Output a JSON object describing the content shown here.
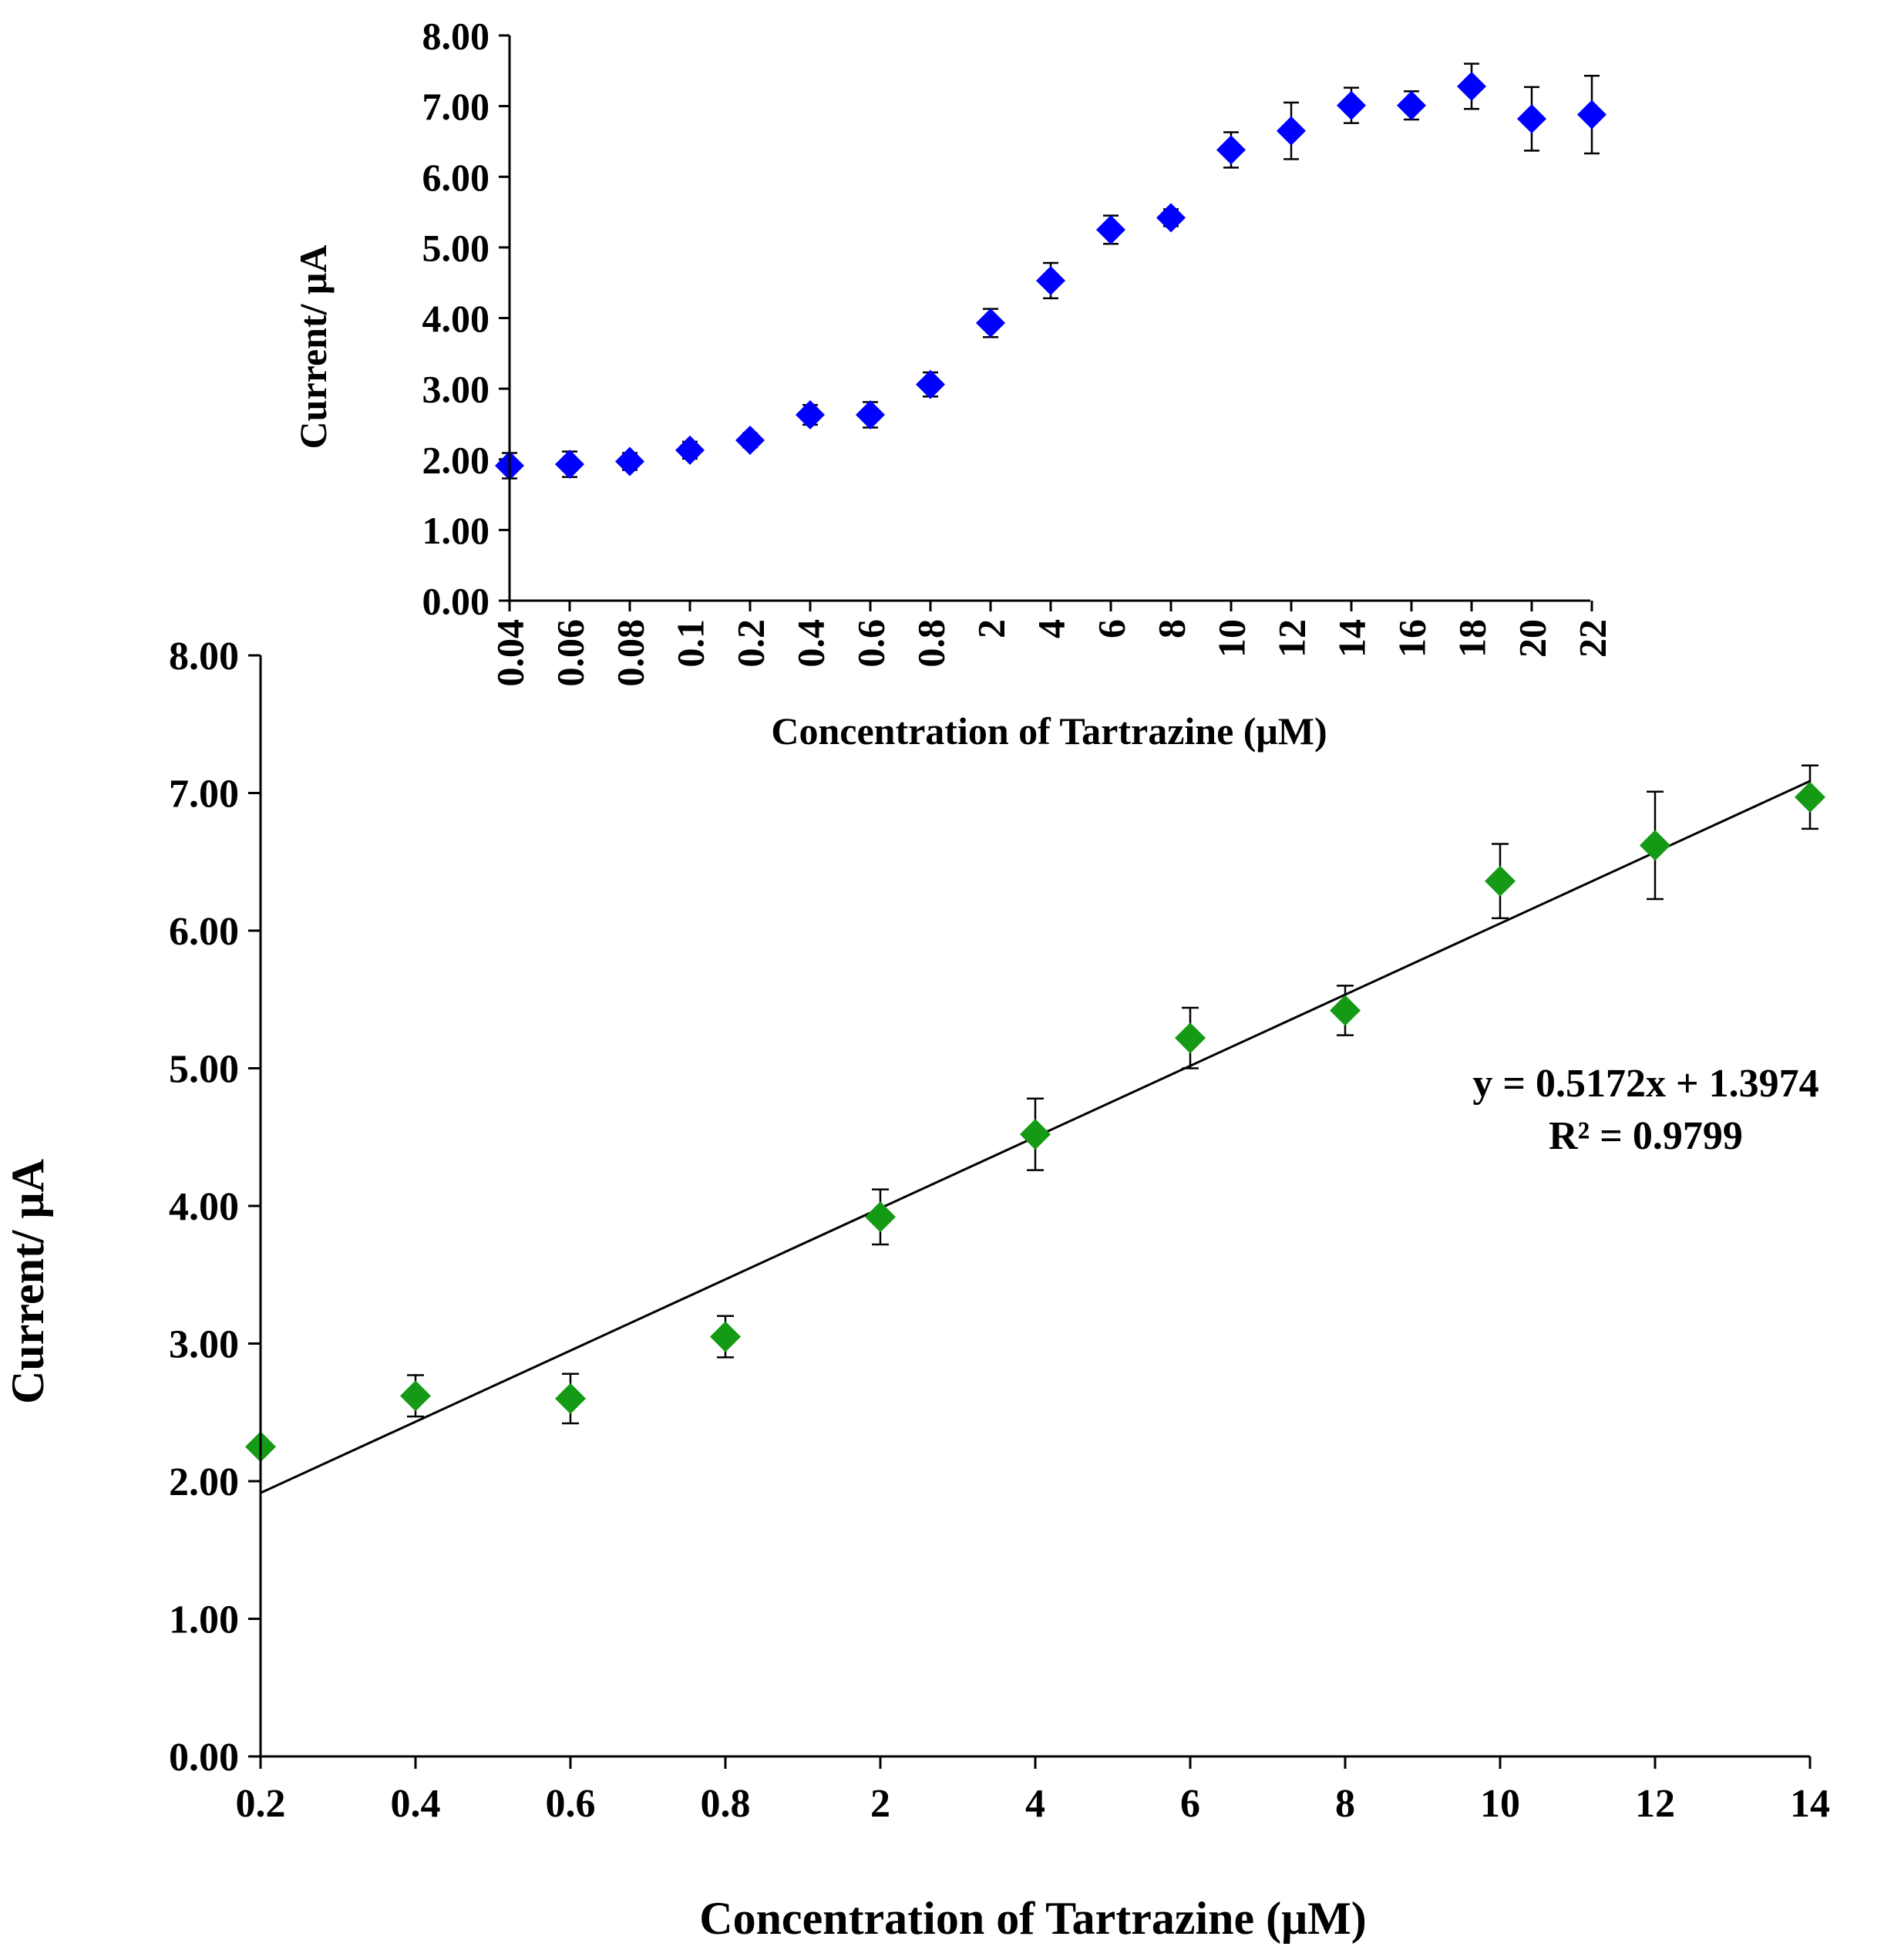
{
  "chart_data": [
    {
      "type": "scatter",
      "name": "inset",
      "categories": [
        "0.04",
        "0.06",
        "0.08",
        "0.1",
        "0.2",
        "0.4",
        "0.6",
        "0.8",
        "2",
        "4",
        "6",
        "8",
        "10",
        "12",
        "14",
        "16",
        "18",
        "20",
        "22"
      ],
      "values": [
        1.91,
        1.93,
        1.97,
        2.13,
        2.27,
        2.63,
        2.63,
        3.06,
        3.93,
        4.53,
        5.25,
        5.42,
        6.38,
        6.65,
        7.01,
        7.01,
        7.28,
        6.82,
        6.88
      ],
      "errors": [
        0.18,
        0.18,
        0.12,
        0.12,
        0.1,
        0.14,
        0.18,
        0.17,
        0.2,
        0.25,
        0.2,
        0.12,
        0.25,
        0.4,
        0.25,
        0.2,
        0.32,
        0.45,
        0.55
      ],
      "xlabel": "Concentration  of Tartrazine  (μM)",
      "ylabel": "Current/  μA",
      "ylim": [
        0,
        8
      ],
      "yticks": [
        "0.00",
        "1.00",
        "2.00",
        "3.00",
        "4.00",
        "5.00",
        "6.00",
        "7.00",
        "8.00"
      ],
      "marker_color": "#0000ff",
      "marker": "diamond"
    },
    {
      "type": "scatter",
      "name": "main",
      "categories": [
        "0.2",
        "0.4",
        "0.6",
        "0.8",
        "2",
        "4",
        "6",
        "8",
        "10",
        "12",
        "14"
      ],
      "values": [
        2.25,
        2.62,
        2.6,
        3.05,
        3.92,
        4.52,
        5.22,
        5.42,
        6.36,
        6.62,
        6.97
      ],
      "errors": [
        0.0,
        0.15,
        0.18,
        0.15,
        0.2,
        0.26,
        0.22,
        0.18,
        0.27,
        0.39,
        0.23
      ],
      "xlabel": "Concentration of Tartrazine (μM)",
      "ylabel": "Current/ μA",
      "ylim": [
        0,
        8
      ],
      "yticks": [
        "0.00",
        "1.00",
        "2.00",
        "3.00",
        "4.00",
        "5.00",
        "6.00",
        "7.00",
        "8.00"
      ],
      "marker_color": "#159a15",
      "marker": "diamond",
      "trendline": {
        "slope": 0.5172,
        "intercept": 1.3974,
        "equation": "y = 0.5172x + 1.3974",
        "r2": "R² = 0.9799"
      }
    }
  ]
}
